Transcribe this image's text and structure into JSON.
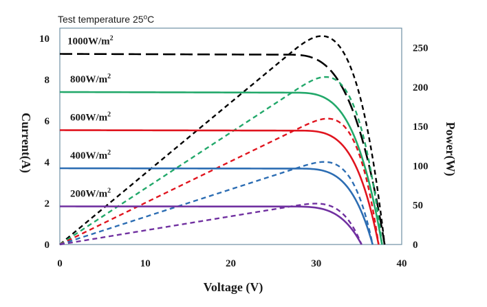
{
  "chart_data": {
    "type": "line",
    "header_prefix": "Test  temperature 25",
    "header_sup": "o",
    "header_suffix": "C",
    "xlabel": "Voltage (V)",
    "ylabel_left": "Current(A)",
    "ylabel_right": "Power(W)",
    "xlim": [
      0,
      40
    ],
    "ylim_left": [
      0,
      10.5
    ],
    "ylim_right": [
      0,
      275
    ],
    "x_ticks": [
      "0",
      "10",
      "20",
      "30",
      "40"
    ],
    "y_left_ticks": [
      "0",
      "2",
      "4",
      "6",
      "8",
      "10"
    ],
    "y_right_ticks": [
      "0",
      "50",
      "100",
      "150",
      "200",
      "250"
    ],
    "grid": false,
    "series": [
      {
        "name": "1000W/m",
        "sup": "2",
        "color": "#000000",
        "isc": 9.25,
        "voc": 38.0,
        "vk": 26.5,
        "sharp": 10,
        "power_peak": 265,
        "power_vmp": 30.8
      },
      {
        "name": "800W/m",
        "sup": "2",
        "color": "#22a86a",
        "isc": 7.4,
        "voc": 37.7,
        "vk": 27.0,
        "sharp": 11,
        "power_peak": 213,
        "power_vmp": 31.0
      },
      {
        "name": "600W/m",
        "sup": "2",
        "color": "#e0141e",
        "isc": 5.55,
        "voc": 37.3,
        "vk": 27.3,
        "sharp": 12,
        "power_peak": 160,
        "power_vmp": 30.8
      },
      {
        "name": "400W/m",
        "sup": "2",
        "color": "#2c6db3",
        "isc": 3.7,
        "voc": 36.6,
        "vk": 27.2,
        "sharp": 12,
        "power_peak": 105,
        "power_vmp": 30.4
      },
      {
        "name": "200W/m",
        "sup": "2",
        "color": "#7030a0",
        "isc": 1.85,
        "voc": 35.3,
        "vk": 26.5,
        "sharp": 12,
        "power_peak": 52,
        "power_vmp": 30.0
      }
    ]
  }
}
